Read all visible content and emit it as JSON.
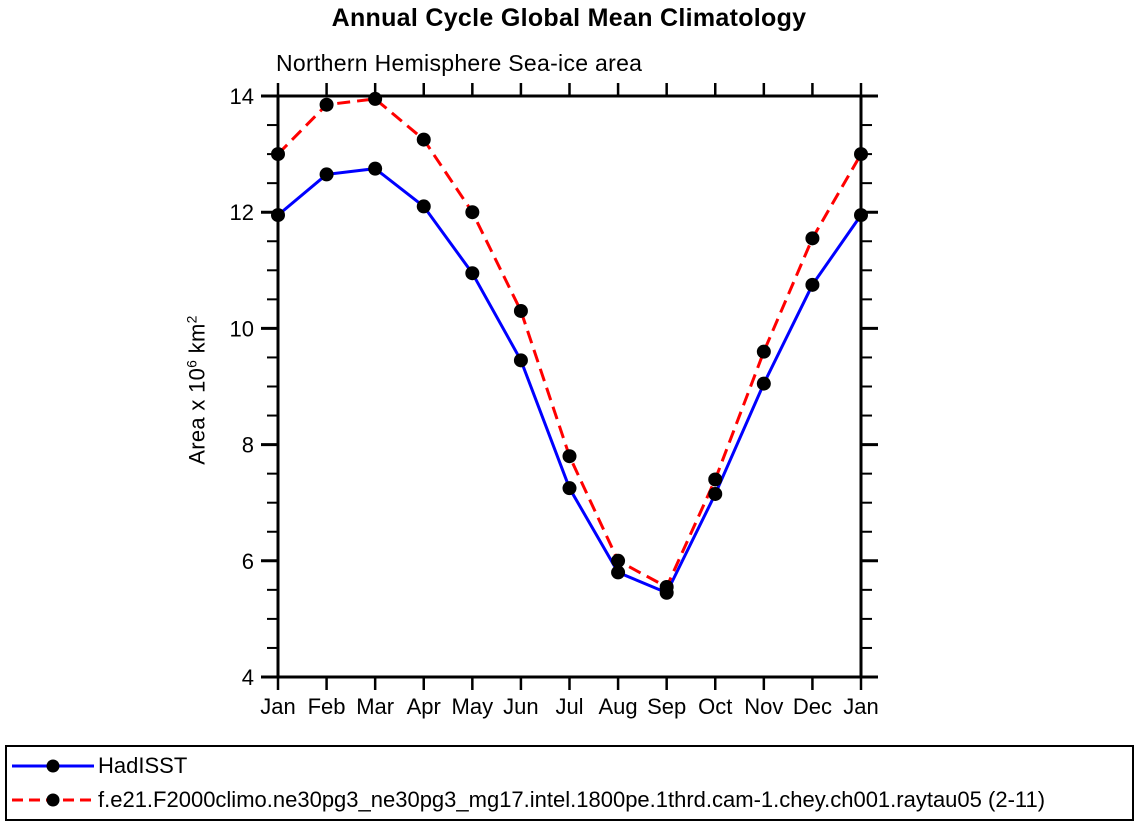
{
  "chart": {
    "title": "Annual Cycle Global Mean Climatology",
    "subtitle": "Northern Hemisphere Sea-ice area",
    "ylabel_parts": {
      "prefix": "Area x 10",
      "exp1": "6",
      "mid": " km",
      "exp2": "2"
    }
  },
  "legend": {
    "entries": [
      {
        "label": "HadISST"
      },
      {
        "label": "f.e21.F2000climo.ne30pg3_ne30pg3_mg17.intel.1800pe.1thrd.cam-1.chey.ch001.raytau05 (2-11)"
      }
    ]
  },
  "chart_data": {
    "type": "line",
    "title": "Annual Cycle Global Mean Climatology",
    "subtitle": "Northern Hemisphere Sea-ice area",
    "xlabel": "",
    "ylabel": "Area x 10^6 km^2",
    "categories": [
      "Jan",
      "Feb",
      "Mar",
      "Apr",
      "May",
      "Jun",
      "Jul",
      "Aug",
      "Sep",
      "Oct",
      "Nov",
      "Dec",
      "Jan"
    ],
    "ylim": [
      4,
      14
    ],
    "ytick_major": 2,
    "ytick_minor": 0.5,
    "grid": false,
    "legend_position": "bottom",
    "axis_color": "#000000",
    "marker_color": "#000000",
    "series": [
      {
        "name": "HadISST",
        "color": "#0000ff",
        "style": "solid",
        "marker": "circle",
        "values": [
          11.95,
          12.65,
          12.75,
          12.1,
          10.95,
          9.45,
          7.25,
          5.8,
          5.45,
          7.15,
          9.05,
          10.75,
          11.95
        ]
      },
      {
        "name": "f.e21.F2000climo.ne30pg3_ne30pg3_mg17.intel.1800pe.1thrd.cam-1.chey.ch001.raytau05 (2-11)",
        "color": "#ff0000",
        "style": "dashed",
        "marker": "circle",
        "values": [
          13.0,
          13.85,
          13.95,
          13.25,
          12.0,
          10.3,
          7.8,
          6.0,
          5.55,
          7.4,
          9.6,
          11.55,
          13.0
        ]
      }
    ]
  }
}
